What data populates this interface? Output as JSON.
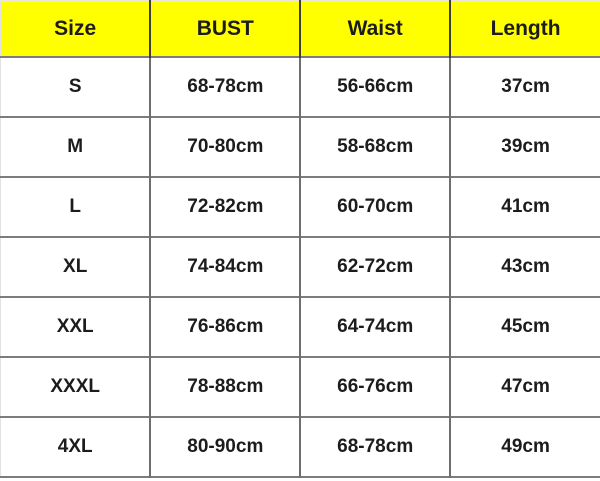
{
  "colors": {
    "header_background": "#ffff00",
    "text": "#1c1c1c",
    "grid_line": "#7c7c7c",
    "header_divider": "#3e3e3e"
  },
  "chart_data": {
    "type": "table",
    "columns": [
      "Size",
      "BUST",
      "Waist",
      "Length"
    ],
    "rows": [
      [
        "S",
        "68-78cm",
        "56-66cm",
        "37cm"
      ],
      [
        "M",
        "70-80cm",
        "58-68cm",
        "39cm"
      ],
      [
        "L",
        "72-82cm",
        "60-70cm",
        "41cm"
      ],
      [
        "XL",
        "74-84cm",
        "62-72cm",
        "43cm"
      ],
      [
        "XXL",
        "76-86cm",
        "64-74cm",
        "45cm"
      ],
      [
        "XXXL",
        "78-88cm",
        "66-76cm",
        "47cm"
      ],
      [
        "4XL",
        "80-90cm",
        "68-78cm",
        "49cm"
      ]
    ]
  }
}
